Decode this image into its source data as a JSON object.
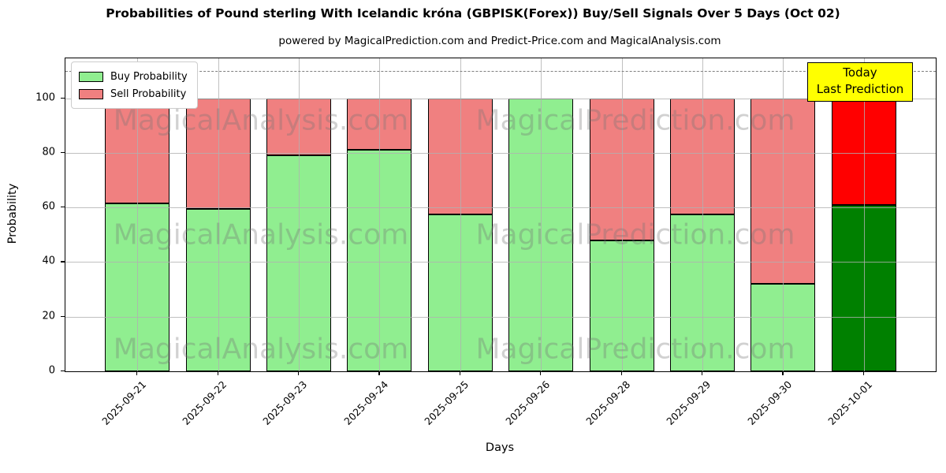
{
  "chart_data": {
    "type": "bar",
    "stacked": true,
    "title": "Probabilities of Pound sterling With Icelandic króna (GBPISK(Forex)) Buy/Sell Signals Over 5 Days (Oct 02)",
    "subtitle": "powered by MagicalPrediction.com and Predict-Price.com and MagicalAnalysis.com",
    "xlabel": "Days",
    "ylabel": "Probability",
    "categories": [
      "2025-09-21",
      "2025-09-22",
      "2025-09-23",
      "2025-09-24",
      "2025-09-25",
      "2025-09-26",
      "2025-09-28",
      "2025-09-29",
      "2025-09-30",
      "2025-10-01"
    ],
    "series": [
      {
        "name": "Buy Probability",
        "color": "#90ee90",
        "today_color": "#008000",
        "values": [
          61.5,
          59.5,
          79,
          81,
          57.5,
          100,
          48,
          57.5,
          32,
          61
        ]
      },
      {
        "name": "Sell Probability",
        "color": "#f08080",
        "today_color": "#ff0000",
        "values": [
          38.5,
          40.5,
          21,
          19,
          42.5,
          0,
          52,
          42.5,
          68,
          39
        ]
      }
    ],
    "today_index": 9,
    "ylim": [
      0,
      114.6
    ],
    "yticks": [
      0,
      20,
      40,
      60,
      80,
      100
    ],
    "grid": true,
    "dashed_line_y": 110,
    "legend_position": "upper left",
    "legend": [
      "Buy Probability",
      "Sell Probability"
    ]
  },
  "annotation": {
    "line1": "Today",
    "line2": "Last Prediction",
    "bg": "#ffff00"
  },
  "watermarks": {
    "left": "MagicalAnalysis.com",
    "right": "MagicalPrediction.com"
  },
  "colors": {
    "grid": "#b0b0b0",
    "dashed_line": "#7f7f7f",
    "bar_edge": "#000000",
    "axis": "#000000",
    "background": "#ffffff"
  }
}
